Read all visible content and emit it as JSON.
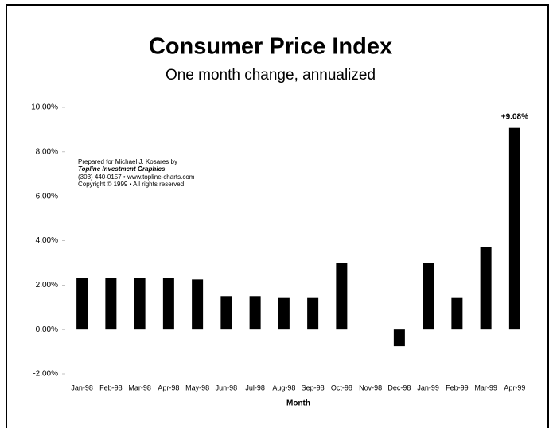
{
  "chart_data": {
    "type": "bar",
    "title": "Consumer Price Index",
    "subtitle": "One month change, annualized",
    "x_label": "Month",
    "annotation": [
      "Prepared for Michael J. Kosares by",
      "Topline Investment Graphics",
      "(303) 440-0157 • www.topline-charts.com",
      "Copyright © 1999 • All rights reserved"
    ],
    "categories": [
      "Jan-98",
      "Feb-98",
      "Mar-98",
      "Apr-98",
      "May-98",
      "Jun-98",
      "Jul-98",
      "Aug-98",
      "Sep-98",
      "Oct-98",
      "Nov-98",
      "Dec-98",
      "Jan-99",
      "Feb-99",
      "Mar-99",
      "Apr-99"
    ],
    "values": [
      2.3,
      2.3,
      2.3,
      2.3,
      2.25,
      1.5,
      1.5,
      1.45,
      1.45,
      3.0,
      0,
      -0.75,
      3.0,
      1.45,
      3.7,
      9.08
    ],
    "value_labels": [
      null,
      null,
      null,
      null,
      null,
      null,
      null,
      null,
      null,
      null,
      null,
      null,
      null,
      null,
      null,
      "+9.08%"
    ],
    "color": "#000000",
    "ylim": [
      -2,
      10
    ],
    "yticks": [
      {
        "value": -2,
        "label": "-2.00%"
      },
      {
        "value": 0,
        "label": "0.00%"
      },
      {
        "value": 2,
        "label": "2.00%"
      },
      {
        "value": 4,
        "label": "4.00%"
      },
      {
        "value": 6,
        "label": "6.00%"
      },
      {
        "value": 8,
        "label": "8.00%"
      },
      {
        "value": 10,
        "label": "10.00%"
      }
    ],
    "grid": false
  }
}
